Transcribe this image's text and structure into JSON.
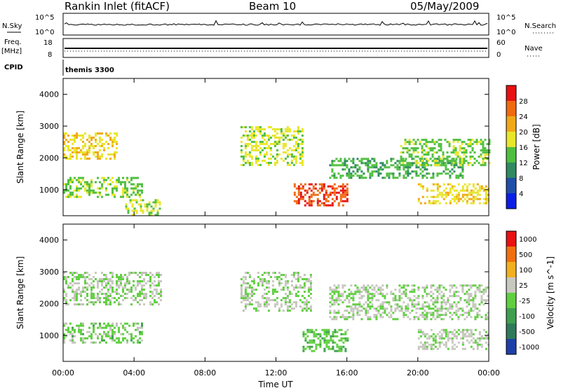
{
  "header": {
    "station": "Rankin Inlet (fitACF)",
    "beam": "Beam 10",
    "date": "05/May/2009"
  },
  "status_panels": {
    "nsky_label": "N.Sky",
    "nsky_ticks": [
      "10^5",
      "10^0"
    ],
    "nsearch_label": "N.Search",
    "nsearch_ticks": [
      "10^5",
      "10^0"
    ],
    "freq_label_line1": "Freq.",
    "freq_label_line2": "[MHz]",
    "freq_ticks": [
      "18",
      "8"
    ],
    "nave_label": "Nave",
    "nave_ticks": [
      "60",
      "0"
    ],
    "cpid_label": "CPID",
    "cpid_value": "themis 3300"
  },
  "time_axis": {
    "xlabel": "Time UT",
    "ticks": [
      "00:00",
      "04:00",
      "08:00",
      "12:00",
      "16:00",
      "20:00",
      "00:00"
    ]
  },
  "colors": {
    "power_scale": [
      "#0a1ee6",
      "#1f4fa8",
      "#2f8a5f",
      "#4fbf3f",
      "#e8e62a",
      "#f0a818",
      "#f06a10",
      "#e81010"
    ],
    "velocity_scale": [
      "#1f3fa8",
      "#2f7a5a",
      "#3f9f4f",
      "#5fcf3f",
      "#c8c8c0",
      "#f0b020",
      "#f07010",
      "#e81010"
    ],
    "ground_scatter": "#c0c0b8"
  },
  "chart_data": [
    {
      "type": "heatmap",
      "panel": "power",
      "xlabel": "",
      "ylabel": "Slant Range [km]",
      "xlim": [
        0,
        24
      ],
      "ylim": [
        180,
        4500
      ],
      "yticks": [
        1000,
        2000,
        3000,
        4000
      ],
      "colorbar_label": "Power [dB]",
      "colorbar_ticks": [
        "28",
        "24",
        "20",
        "16",
        "12",
        "8",
        "4"
      ],
      "colorbar_range": [
        0,
        30
      ],
      "echo_regions": [
        {
          "t": [
            0.0,
            3.0
          ],
          "r": [
            2000,
            2800
          ],
          "value": 18
        },
        {
          "t": [
            0.0,
            4.5
          ],
          "r": [
            800,
            1400
          ],
          "value": 14
        },
        {
          "t": [
            3.5,
            5.5
          ],
          "r": [
            200,
            700
          ],
          "value": 16
        },
        {
          "t": [
            10.0,
            13.5
          ],
          "r": [
            1800,
            3000
          ],
          "value": 16
        },
        {
          "t": [
            13.0,
            16.0
          ],
          "r": [
            500,
            1200
          ],
          "value": 26
        },
        {
          "t": [
            15.0,
            22.5
          ],
          "r": [
            1400,
            2000
          ],
          "value": 12
        },
        {
          "t": [
            19.0,
            24.0
          ],
          "r": [
            1800,
            2600
          ],
          "value": 14
        },
        {
          "t": [
            20.0,
            24.0
          ],
          "r": [
            600,
            1200
          ],
          "value": 18
        }
      ]
    },
    {
      "type": "heatmap",
      "panel": "velocity",
      "xlabel": "Time UT",
      "ylabel": "Slant Range [km]",
      "xlim": [
        0,
        24
      ],
      "ylim": [
        180,
        4500
      ],
      "yticks": [
        1000,
        2000,
        3000,
        4000
      ],
      "colorbar_label": "Velocity [m s^-1]",
      "colorbar_ticks": [
        "1000",
        "500",
        "100",
        "25",
        "-25",
        "-100",
        "-500",
        "-1000"
      ],
      "colorbar_range": [
        -1000,
        1000
      ],
      "echo_regions": [
        {
          "t": [
            0.0,
            5.5
          ],
          "r": [
            2000,
            3000
          ],
          "value": 0
        },
        {
          "t": [
            0.0,
            4.5
          ],
          "r": [
            800,
            1400
          ],
          "value": -100
        },
        {
          "t": [
            10.0,
            14.0
          ],
          "r": [
            1800,
            3000
          ],
          "value": 0
        },
        {
          "t": [
            13.5,
            16.0
          ],
          "r": [
            500,
            1200
          ],
          "value": -200
        },
        {
          "t": [
            15.0,
            24.0
          ],
          "r": [
            1500,
            2600
          ],
          "value": 0
        },
        {
          "t": [
            20.0,
            24.0
          ],
          "r": [
            600,
            1200
          ],
          "value": 50
        }
      ]
    }
  ]
}
